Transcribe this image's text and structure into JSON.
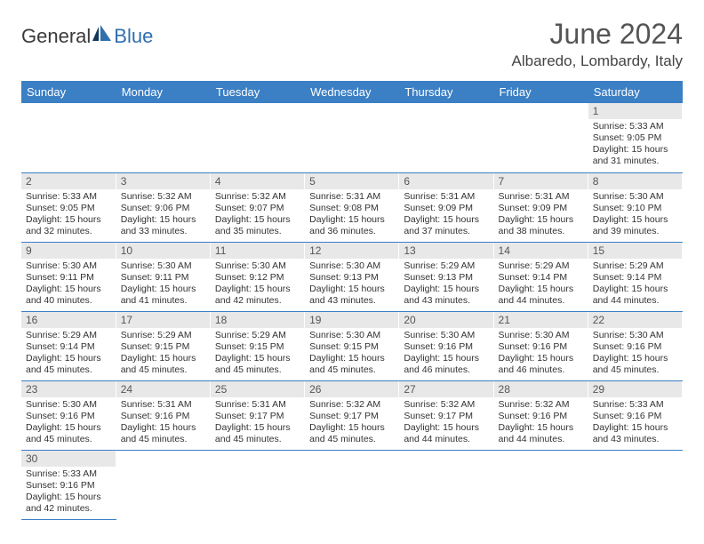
{
  "brand": {
    "name1": "General",
    "name2": "Blue"
  },
  "title": "June 2024",
  "location": "Albaredo, Lombardy, Italy",
  "colors": {
    "header_bg": "#3b7fc4",
    "header_text": "#ffffff",
    "daynum_bg": "#e8e8e8",
    "brand_blue": "#2f6fad"
  },
  "weekdays": [
    "Sunday",
    "Monday",
    "Tuesday",
    "Wednesday",
    "Thursday",
    "Friday",
    "Saturday"
  ],
  "labels": {
    "sunrise": "Sunrise:",
    "sunset": "Sunset:",
    "daylight": "Daylight:"
  },
  "grid": {
    "first_day_index": 6,
    "days_in_month": 30
  },
  "days": {
    "1": {
      "sunrise": "5:33 AM",
      "sunset": "9:05 PM",
      "daylight": "15 hours and 31 minutes."
    },
    "2": {
      "sunrise": "5:33 AM",
      "sunset": "9:05 PM",
      "daylight": "15 hours and 32 minutes."
    },
    "3": {
      "sunrise": "5:32 AM",
      "sunset": "9:06 PM",
      "daylight": "15 hours and 33 minutes."
    },
    "4": {
      "sunrise": "5:32 AM",
      "sunset": "9:07 PM",
      "daylight": "15 hours and 35 minutes."
    },
    "5": {
      "sunrise": "5:31 AM",
      "sunset": "9:08 PM",
      "daylight": "15 hours and 36 minutes."
    },
    "6": {
      "sunrise": "5:31 AM",
      "sunset": "9:09 PM",
      "daylight": "15 hours and 37 minutes."
    },
    "7": {
      "sunrise": "5:31 AM",
      "sunset": "9:09 PM",
      "daylight": "15 hours and 38 minutes."
    },
    "8": {
      "sunrise": "5:30 AM",
      "sunset": "9:10 PM",
      "daylight": "15 hours and 39 minutes."
    },
    "9": {
      "sunrise": "5:30 AM",
      "sunset": "9:11 PM",
      "daylight": "15 hours and 40 minutes."
    },
    "10": {
      "sunrise": "5:30 AM",
      "sunset": "9:11 PM",
      "daylight": "15 hours and 41 minutes."
    },
    "11": {
      "sunrise": "5:30 AM",
      "sunset": "9:12 PM",
      "daylight": "15 hours and 42 minutes."
    },
    "12": {
      "sunrise": "5:30 AM",
      "sunset": "9:13 PM",
      "daylight": "15 hours and 43 minutes."
    },
    "13": {
      "sunrise": "5:29 AM",
      "sunset": "9:13 PM",
      "daylight": "15 hours and 43 minutes."
    },
    "14": {
      "sunrise": "5:29 AM",
      "sunset": "9:14 PM",
      "daylight": "15 hours and 44 minutes."
    },
    "15": {
      "sunrise": "5:29 AM",
      "sunset": "9:14 PM",
      "daylight": "15 hours and 44 minutes."
    },
    "16": {
      "sunrise": "5:29 AM",
      "sunset": "9:14 PM",
      "daylight": "15 hours and 45 minutes."
    },
    "17": {
      "sunrise": "5:29 AM",
      "sunset": "9:15 PM",
      "daylight": "15 hours and 45 minutes."
    },
    "18": {
      "sunrise": "5:29 AM",
      "sunset": "9:15 PM",
      "daylight": "15 hours and 45 minutes."
    },
    "19": {
      "sunrise": "5:30 AM",
      "sunset": "9:15 PM",
      "daylight": "15 hours and 45 minutes."
    },
    "20": {
      "sunrise": "5:30 AM",
      "sunset": "9:16 PM",
      "daylight": "15 hours and 46 minutes."
    },
    "21": {
      "sunrise": "5:30 AM",
      "sunset": "9:16 PM",
      "daylight": "15 hours and 46 minutes."
    },
    "22": {
      "sunrise": "5:30 AM",
      "sunset": "9:16 PM",
      "daylight": "15 hours and 45 minutes."
    },
    "23": {
      "sunrise": "5:30 AM",
      "sunset": "9:16 PM",
      "daylight": "15 hours and 45 minutes."
    },
    "24": {
      "sunrise": "5:31 AM",
      "sunset": "9:16 PM",
      "daylight": "15 hours and 45 minutes."
    },
    "25": {
      "sunrise": "5:31 AM",
      "sunset": "9:17 PM",
      "daylight": "15 hours and 45 minutes."
    },
    "26": {
      "sunrise": "5:32 AM",
      "sunset": "9:17 PM",
      "daylight": "15 hours and 45 minutes."
    },
    "27": {
      "sunrise": "5:32 AM",
      "sunset": "9:17 PM",
      "daylight": "15 hours and 44 minutes."
    },
    "28": {
      "sunrise": "5:32 AM",
      "sunset": "9:16 PM",
      "daylight": "15 hours and 44 minutes."
    },
    "29": {
      "sunrise": "5:33 AM",
      "sunset": "9:16 PM",
      "daylight": "15 hours and 43 minutes."
    },
    "30": {
      "sunrise": "5:33 AM",
      "sunset": "9:16 PM",
      "daylight": "15 hours and 42 minutes."
    }
  }
}
